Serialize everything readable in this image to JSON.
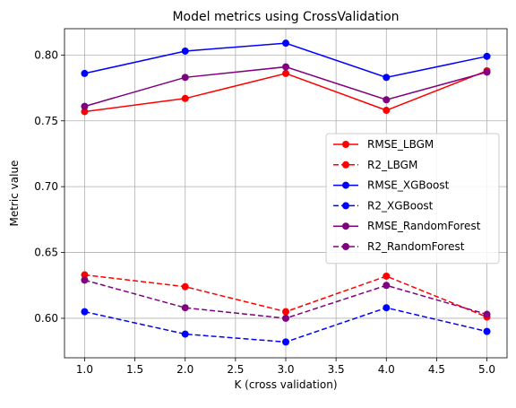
{
  "chart_data": {
    "type": "line",
    "title": "Model metrics using CrossValidation",
    "xlabel": "K (cross validation)",
    "ylabel": "Metric value",
    "x": [
      1,
      2,
      3,
      4,
      5
    ],
    "xlim": [
      0.8,
      5.2
    ],
    "ylim": [
      0.57,
      0.82
    ],
    "xticks": [
      "1.0",
      "1.5",
      "2.0",
      "2.5",
      "3.0",
      "3.5",
      "4.0",
      "4.5",
      "5.0"
    ],
    "yticks": [
      "0.60",
      "0.65",
      "0.70",
      "0.75",
      "0.80"
    ],
    "grid": true,
    "legend_position": "center-right",
    "series": [
      {
        "name": "RMSE_LBGM",
        "color": "#ff0000",
        "style": "solid",
        "values": [
          0.757,
          0.767,
          0.786,
          0.758,
          0.788
        ]
      },
      {
        "name": "R2_LBGM",
        "color": "#ff0000",
        "style": "dashed",
        "values": [
          0.633,
          0.624,
          0.605,
          0.632,
          0.601
        ]
      },
      {
        "name": "RMSE_XGBoost",
        "color": "#0000ff",
        "style": "solid",
        "values": [
          0.786,
          0.803,
          0.809,
          0.783,
          0.799
        ]
      },
      {
        "name": "R2_XGBoost",
        "color": "#0000ff",
        "style": "dashed",
        "values": [
          0.605,
          0.588,
          0.582,
          0.608,
          0.59
        ]
      },
      {
        "name": "RMSE_RandomForest",
        "color": "#800080",
        "style": "solid",
        "values": [
          0.761,
          0.783,
          0.791,
          0.766,
          0.787
        ]
      },
      {
        "name": "R2_RandomForest",
        "color": "#800080",
        "style": "dashed",
        "values": [
          0.629,
          0.608,
          0.6,
          0.625,
          0.603
        ]
      }
    ]
  }
}
